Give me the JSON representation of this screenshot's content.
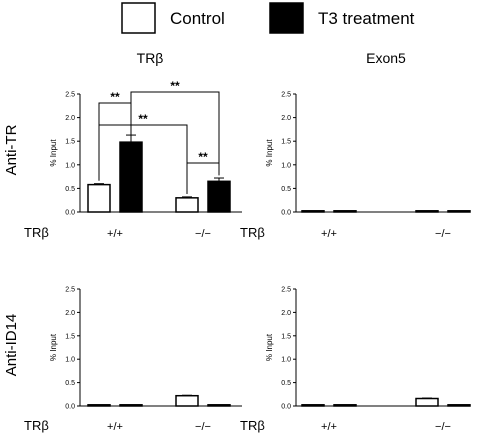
{
  "legend": {
    "items": [
      {
        "label": "Control",
        "color": "#ffffff"
      },
      {
        "label": "T3 treatment",
        "color": "#000000"
      }
    ]
  },
  "row_labels": [
    "Anti-TR",
    "Anti-ID14"
  ],
  "chart_data": [
    {
      "type": "bar",
      "title": "TRβ",
      "row": "Anti-TR",
      "ylabel": "% Input",
      "ylim": [
        0,
        2.5
      ],
      "yticks": [
        "0.0",
        "0.5",
        "1.0",
        "1.5",
        "2.0",
        "2.5"
      ],
      "xlabel": "TRβ",
      "categories": [
        "+/+",
        "−/−"
      ],
      "series": [
        {
          "name": "Control",
          "values": [
            0.58,
            0.3
          ],
          "errors": [
            0.02,
            0.02
          ]
        },
        {
          "name": "T3 treatment",
          "values": [
            1.48,
            0.65
          ],
          "errors": [
            0.15,
            0.07
          ]
        }
      ],
      "significance": [
        "**",
        "**",
        "**",
        "**"
      ]
    },
    {
      "type": "bar",
      "title": "Exon5",
      "row": "Anti-TR",
      "ylabel": "% Input",
      "ylim": [
        0,
        2.5
      ],
      "yticks": [
        "0.0",
        "0.5",
        "1.0",
        "1.5",
        "2.0",
        "2.5"
      ],
      "xlabel": "TRβ",
      "categories": [
        "+/+",
        "−/−"
      ],
      "series": [
        {
          "name": "Control",
          "values": [
            0.02,
            0.02
          ],
          "errors": [
            0,
            0
          ]
        },
        {
          "name": "T3 treatment",
          "values": [
            0.01,
            0.01
          ],
          "errors": [
            0,
            0
          ]
        }
      ]
    },
    {
      "type": "bar",
      "title": "",
      "row": "Anti-ID14",
      "ylabel": "% Input",
      "ylim": [
        0,
        2.5
      ],
      "yticks": [
        "0.0",
        "0.5",
        "1.0",
        "1.5",
        "2.0",
        "2.5"
      ],
      "xlabel": "TRβ",
      "categories": [
        "+/+",
        "−/−"
      ],
      "series": [
        {
          "name": "Control",
          "values": [
            0.02,
            0.22
          ],
          "errors": [
            0,
            0.01
          ]
        },
        {
          "name": "T3 treatment",
          "values": [
            0.01,
            0.01
          ],
          "errors": [
            0,
            0
          ]
        }
      ]
    },
    {
      "type": "bar",
      "title": "",
      "row": "Anti-ID14",
      "ylabel": "% Input",
      "ylim": [
        0,
        2.5
      ],
      "yticks": [
        "0.0",
        "0.5",
        "1.0",
        "1.5",
        "2.0",
        "2.5"
      ],
      "xlabel": "TRβ",
      "categories": [
        "+/+",
        "−/−"
      ],
      "series": [
        {
          "name": "Control",
          "values": [
            0.01,
            0.16
          ],
          "errors": [
            0,
            0.01
          ]
        },
        {
          "name": "T3 treatment",
          "values": [
            0.01,
            0.01
          ],
          "errors": [
            0,
            0
          ]
        }
      ]
    }
  ]
}
